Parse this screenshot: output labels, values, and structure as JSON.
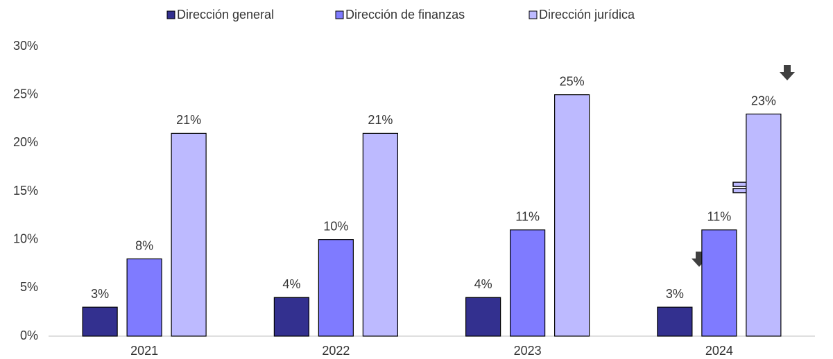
{
  "chart_data": {
    "type": "bar",
    "categories": [
      "2021",
      "2022",
      "2023",
      "2024"
    ],
    "series": [
      {
        "name": "Dirección general",
        "color": "#33308f",
        "values": [
          3,
          4,
          4,
          3
        ],
        "value_labels": [
          "3%",
          "4%",
          "4%",
          "3%"
        ]
      },
      {
        "name": "Dirección de finanzas",
        "color": "#7f7bff",
        "values": [
          8,
          10,
          11,
          11
        ],
        "value_labels": [
          "8%",
          "10%",
          "11%",
          "11%"
        ]
      },
      {
        "name": "Dirección jurídica",
        "color": "#bdbaff",
        "values": [
          21,
          21,
          25,
          23
        ],
        "value_labels": [
          "21%",
          "21%",
          "25%",
          "23%"
        ]
      }
    ],
    "ylim": [
      0,
      30
    ],
    "yticks": [
      {
        "value": 0,
        "label": "0%"
      },
      {
        "value": 5,
        "label": "5%"
      },
      {
        "value": 10,
        "label": "10%"
      },
      {
        "value": 15,
        "label": "15%"
      },
      {
        "value": 20,
        "label": "20%"
      },
      {
        "value": 25,
        "label": "25%"
      },
      {
        "value": 30,
        "label": "30%"
      }
    ],
    "legend": "top"
  }
}
